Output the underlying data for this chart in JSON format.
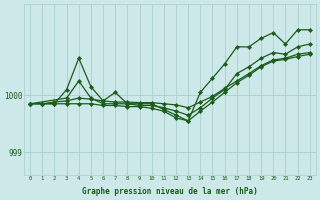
{
  "xlabel": "Graphe pression niveau de la mer (hPa)",
  "background_color": "#cce8e8",
  "grid_color": "#aacfcf",
  "line_color": "#1a5c1a",
  "marker_color": "#1a5c1a",
  "text_color": "#1a5c1a",
  "xlim": [
    -0.5,
    23.5
  ],
  "ylim": [
    998.6,
    1001.6
  ],
  "yticks": [
    999,
    1000
  ],
  "xticks": [
    0,
    1,
    2,
    3,
    4,
    5,
    6,
    7,
    8,
    9,
    10,
    11,
    12,
    13,
    14,
    15,
    16,
    17,
    18,
    19,
    20,
    21,
    22,
    23
  ],
  "series": [
    {
      "x": [
        0,
        1,
        2,
        3,
        4,
        5,
        6,
        7,
        8,
        9,
        10,
        11,
        12,
        13,
        14,
        15,
        16,
        17,
        18,
        19,
        20,
        21,
        22,
        23
      ],
      "y": [
        999.85,
        999.85,
        999.85,
        1000.1,
        1000.65,
        1000.15,
        999.9,
        1000.05,
        999.85,
        999.85,
        999.85,
        999.75,
        999.65,
        999.55,
        1000.05,
        1000.3,
        1000.55,
        1000.85,
        1000.85,
        1001.0,
        1001.1,
        1000.9,
        1001.15,
        1001.15
      ]
    },
    {
      "x": [
        0,
        3,
        4,
        5,
        6,
        7,
        8,
        9,
        10,
        11,
        12,
        13,
        14,
        15,
        16,
        17,
        18,
        19,
        20,
        21,
        22,
        23
      ],
      "y": [
        999.85,
        999.95,
        1000.25,
        999.95,
        999.85,
        999.85,
        999.85,
        999.82,
        999.82,
        999.78,
        999.72,
        999.65,
        999.78,
        999.95,
        1000.1,
        1000.38,
        1000.5,
        1000.65,
        1000.75,
        1000.72,
        1000.85,
        1000.9
      ]
    },
    {
      "x": [
        0,
        1,
        2,
        3,
        4,
        5,
        6,
        7,
        8,
        9,
        10,
        11,
        12,
        13,
        14,
        15,
        16,
        17,
        18,
        19,
        20,
        21,
        22,
        23
      ],
      "y": [
        999.85,
        999.85,
        999.88,
        999.9,
        999.95,
        999.93,
        999.9,
        999.88,
        999.88,
        999.87,
        999.87,
        999.85,
        999.83,
        999.78,
        999.88,
        999.98,
        1000.12,
        1000.25,
        1000.38,
        1000.52,
        1000.62,
        1000.65,
        1000.72,
        1000.75
      ]
    },
    {
      "x": [
        0,
        1,
        2,
        3,
        4,
        5,
        6,
        7,
        8,
        9,
        10,
        11,
        12,
        13,
        14,
        15,
        16,
        17,
        18,
        19,
        20,
        21,
        22,
        23
      ],
      "y": [
        999.85,
        999.85,
        999.85,
        999.85,
        999.85,
        999.85,
        999.82,
        999.82,
        999.8,
        999.8,
        999.77,
        999.72,
        999.6,
        999.55,
        999.72,
        999.88,
        1000.05,
        1000.22,
        1000.35,
        1000.5,
        1000.6,
        1000.63,
        1000.68,
        1000.72
      ]
    }
  ]
}
